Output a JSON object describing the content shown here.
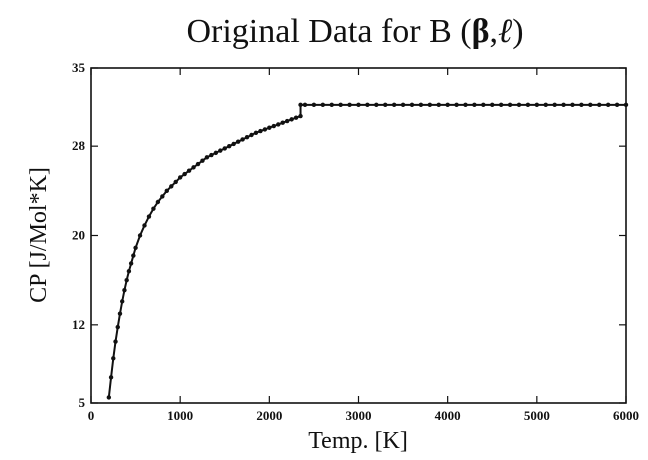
{
  "chart_data": {
    "type": "line",
    "title": {
      "prefix": "Original Data for B (",
      "beta": "β",
      "comma": ",",
      "ell": "ℓ",
      "suffix": ")"
    },
    "xlabel": "Temp. [K]",
    "ylabel": "CP [J/Mol*K]",
    "xlim": [
      0,
      6000
    ],
    "ylim": [
      5,
      35
    ],
    "x_ticks": [
      0,
      1000,
      2000,
      3000,
      4000,
      5000,
      6000
    ],
    "y_ticks": [
      5,
      12,
      20,
      28,
      35
    ],
    "grid": false,
    "series": [
      {
        "color": "#111111",
        "x": [
          200,
          225,
          250,
          275,
          300,
          325,
          350,
          375,
          400,
          425,
          450,
          475,
          500,
          550,
          600,
          650,
          700,
          750,
          800,
          850,
          900,
          950,
          1000,
          1050,
          1100,
          1150,
          1200,
          1250,
          1300,
          1350,
          1400,
          1450,
          1500,
          1550,
          1600,
          1650,
          1700,
          1750,
          1800,
          1850,
          1900,
          1950,
          2000,
          2050,
          2100,
          2150,
          2200,
          2250,
          2300,
          2350,
          2350,
          2400,
          2500,
          2600,
          2700,
          2800,
          2900,
          3000,
          3100,
          3200,
          3300,
          3400,
          3500,
          3600,
          3700,
          3800,
          3900,
          4000,
          4100,
          4200,
          4300,
          4400,
          4500,
          4600,
          4700,
          4800,
          4900,
          5000,
          5100,
          5200,
          5300,
          5400,
          5500,
          5600,
          5700,
          5800,
          5900,
          6000
        ],
        "y": [
          5.5,
          7.3,
          9.0,
          10.5,
          11.8,
          13.0,
          14.1,
          15.1,
          16.0,
          16.8,
          17.5,
          18.2,
          18.9,
          20.0,
          20.9,
          21.7,
          22.4,
          23.0,
          23.5,
          24.0,
          24.4,
          24.8,
          25.2,
          25.5,
          25.8,
          26.1,
          26.4,
          26.7,
          27.0,
          27.2,
          27.4,
          27.6,
          27.8,
          28.0,
          28.2,
          28.4,
          28.6,
          28.8,
          29.0,
          29.2,
          29.35,
          29.5,
          29.65,
          29.8,
          29.95,
          30.1,
          30.25,
          30.4,
          30.55,
          30.7,
          31.7,
          31.7,
          31.7,
          31.7,
          31.7,
          31.7,
          31.7,
          31.7,
          31.7,
          31.7,
          31.7,
          31.7,
          31.7,
          31.7,
          31.7,
          31.7,
          31.7,
          31.7,
          31.7,
          31.7,
          31.7,
          31.7,
          31.7,
          31.7,
          31.7,
          31.7,
          31.7,
          31.7,
          31.7,
          31.7,
          31.7,
          31.7,
          31.7,
          31.7,
          31.7,
          31.7,
          31.7,
          31.7
        ]
      }
    ]
  }
}
